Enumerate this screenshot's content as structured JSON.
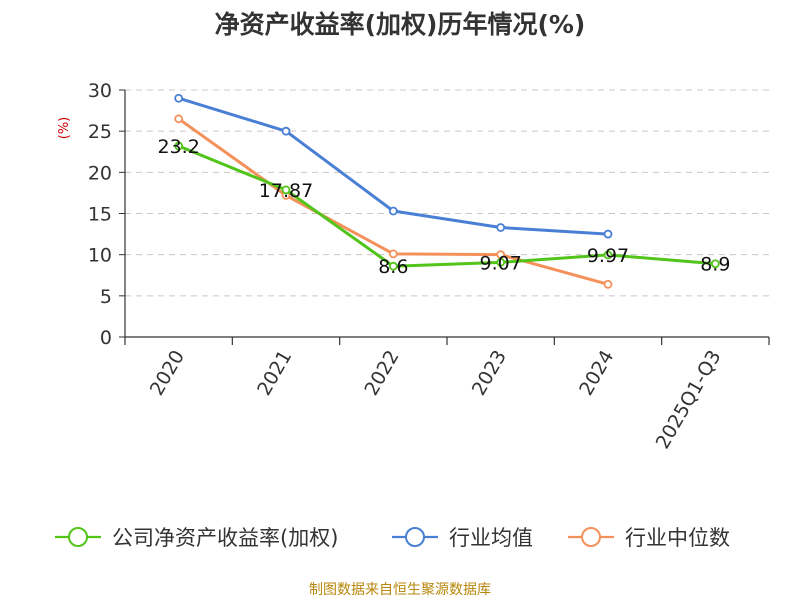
{
  "chart_data": {
    "type": "line",
    "title": "净资产收益率(加权)历年情况(%)",
    "ylabel": "(%)",
    "xlabel": "",
    "categories": [
      "2020",
      "2021",
      "2022",
      "2023",
      "2024",
      "2025Q1-Q3"
    ],
    "ylim": [
      0,
      30
    ],
    "yticks": [
      0,
      5,
      10,
      15,
      20,
      25,
      30
    ],
    "grid": true,
    "series": [
      {
        "name": "公司净资产收益率(加权)",
        "color": "#52c41a",
        "values": [
          23.2,
          17.87,
          8.6,
          9.07,
          9.97,
          8.9
        ],
        "labels": [
          "23.2",
          "17.87",
          "8.6",
          "9.07",
          "9.97",
          "8.9"
        ]
      },
      {
        "name": "行业均值",
        "color": "#4a7fd6",
        "values": [
          29.0,
          25.0,
          15.3,
          13.3,
          12.5,
          null
        ]
      },
      {
        "name": "行业中位数",
        "color": "#f4915a",
        "values": [
          26.5,
          17.2,
          10.1,
          10.0,
          6.4,
          null
        ]
      }
    ],
    "legend_position": "bottom"
  },
  "source": "制图数据来自恒生聚源数据库"
}
